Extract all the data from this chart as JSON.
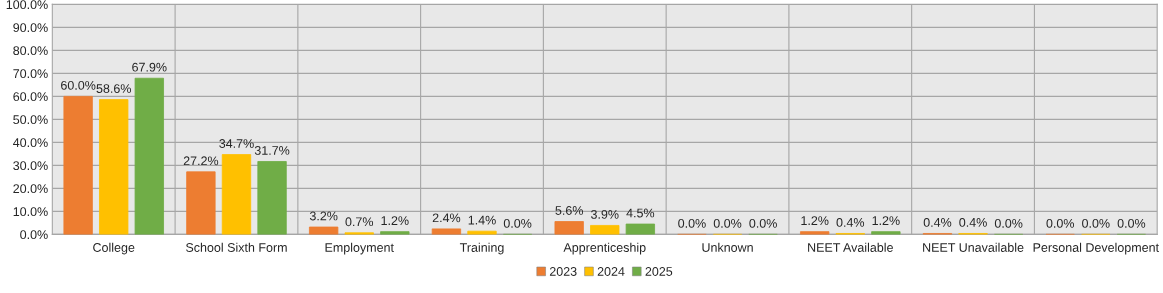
{
  "chart_data": {
    "type": "bar",
    "categories": [
      "College",
      "School Sixth Form",
      "Employment",
      "Training",
      "Apprenticeship",
      "Unknown",
      "NEET Available",
      "NEET Unavailable",
      "Personal Development"
    ],
    "series": [
      {
        "name": "2023",
        "color": "#ed7d31",
        "values": [
          60.0,
          27.2,
          3.2,
          2.4,
          5.6,
          0.0,
          1.2,
          0.4,
          0.0
        ],
        "value_labels": [
          "60.0%",
          "27.2%",
          "3.2%",
          "2.4%",
          "5.6%",
          "0.0%",
          "1.2%",
          "0.4%",
          "0.0%"
        ]
      },
      {
        "name": "2024",
        "color": "#ffc000",
        "values": [
          58.6,
          34.7,
          0.7,
          1.4,
          3.9,
          0.0,
          0.4,
          0.4,
          0.0
        ],
        "value_labels": [
          "58.6%",
          "34.7%",
          "0.7%",
          "1.4%",
          "3.9%",
          "0.0%",
          "0.4%",
          "0.4%",
          "0.0%"
        ]
      },
      {
        "name": "2025",
        "color": "#70ad47",
        "values": [
          67.9,
          31.7,
          1.2,
          0.0,
          4.5,
          0.0,
          1.2,
          0.0,
          0.0
        ],
        "value_labels": [
          "67.9%",
          "31.7%",
          "1.2%",
          "0.0%",
          "4.5%",
          "0.0%",
          "1.2%",
          "0.0%",
          "0.0%"
        ]
      }
    ],
    "ylim": [
      0,
      100
    ],
    "yticks": [
      {
        "value": 0,
        "label": "0.0%"
      },
      {
        "value": 10,
        "label": "10.0%"
      },
      {
        "value": 20,
        "label": "20.0%"
      },
      {
        "value": 30,
        "label": "30.0%"
      },
      {
        "value": 40,
        "label": "40.0%"
      },
      {
        "value": 50,
        "label": "50.0%"
      },
      {
        "value": 60,
        "label": "60.0%"
      },
      {
        "value": 70,
        "label": "70.0%"
      },
      {
        "value": 80,
        "label": "80.0%"
      },
      {
        "value": 90,
        "label": "90.0%"
      },
      {
        "value": 100,
        "label": "100.0%"
      }
    ],
    "grid": true,
    "legend": "bottom"
  }
}
